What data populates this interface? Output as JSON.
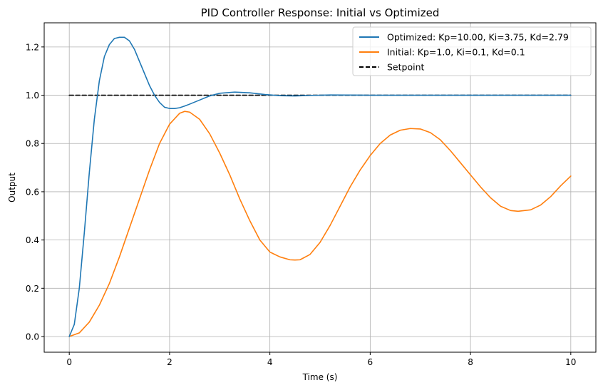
{
  "chart_data": {
    "type": "line",
    "title": "PID Controller Response: Initial vs Optimized",
    "xlabel": "Time (s)",
    "ylabel": "Output",
    "xlim": [
      -0.5,
      10.5
    ],
    "ylim": [
      -0.065,
      1.3
    ],
    "xticks": [
      0,
      2,
      4,
      6,
      8,
      10
    ],
    "xtick_labels": [
      "0",
      "2",
      "4",
      "6",
      "8",
      "10"
    ],
    "yticks": [
      0.0,
      0.2,
      0.4,
      0.6,
      0.8,
      1.0,
      1.2
    ],
    "ytick_labels": [
      "0.0",
      "0.2",
      "0.4",
      "0.6",
      "0.8",
      "1.0",
      "1.2"
    ],
    "grid": true,
    "legend_position": "top-right",
    "series": [
      {
        "name": "Optimized: Kp=10.00, Ki=3.75, Kd=2.79",
        "color": "#1f77b4",
        "dash": "solid",
        "x": [
          0,
          0.1,
          0.2,
          0.3,
          0.4,
          0.5,
          0.6,
          0.7,
          0.8,
          0.9,
          1.0,
          1.1,
          1.2,
          1.3,
          1.4,
          1.5,
          1.6,
          1.7,
          1.8,
          1.9,
          2.0,
          2.1,
          2.2,
          2.3,
          2.4,
          2.6,
          2.8,
          3.0,
          3.3,
          3.6,
          3.9,
          4.2,
          4.5,
          4.8,
          5.2,
          6,
          7,
          8,
          9,
          10
        ],
        "y": [
          0,
          0.05,
          0.2,
          0.43,
          0.68,
          0.9,
          1.06,
          1.16,
          1.21,
          1.235,
          1.24,
          1.24,
          1.225,
          1.19,
          1.14,
          1.09,
          1.04,
          1.0,
          0.97,
          0.95,
          0.945,
          0.945,
          0.948,
          0.955,
          0.963,
          0.98,
          0.997,
          1.008,
          1.013,
          1.01,
          1.003,
          0.998,
          0.997,
          0.999,
          1.001,
          1.0,
          1.0,
          1.0,
          1.0,
          1.0
        ]
      },
      {
        "name": "Initial: Kp=1.0, Ki=0.1, Kd=0.1",
        "color": "#ff7f0e",
        "dash": "solid",
        "x": [
          0,
          0.2,
          0.4,
          0.6,
          0.8,
          1.0,
          1.2,
          1.4,
          1.6,
          1.8,
          2.0,
          2.2,
          2.3,
          2.4,
          2.6,
          2.8,
          3.0,
          3.2,
          3.4,
          3.6,
          3.8,
          4.0,
          4.2,
          4.4,
          4.5,
          4.6,
          4.8,
          5.0,
          5.2,
          5.4,
          5.6,
          5.8,
          6.0,
          6.2,
          6.4,
          6.6,
          6.8,
          7.0,
          7.2,
          7.4,
          7.6,
          7.8,
          8.0,
          8.2,
          8.4,
          8.6,
          8.8,
          8.95,
          9.2,
          9.4,
          9.6,
          9.8,
          10.0
        ],
        "y": [
          0,
          0.015,
          0.06,
          0.13,
          0.22,
          0.33,
          0.45,
          0.57,
          0.69,
          0.8,
          0.88,
          0.925,
          0.933,
          0.93,
          0.9,
          0.84,
          0.76,
          0.67,
          0.57,
          0.48,
          0.4,
          0.35,
          0.33,
          0.318,
          0.317,
          0.318,
          0.34,
          0.39,
          0.46,
          0.54,
          0.62,
          0.69,
          0.75,
          0.8,
          0.835,
          0.855,
          0.862,
          0.86,
          0.845,
          0.815,
          0.77,
          0.72,
          0.67,
          0.62,
          0.575,
          0.54,
          0.522,
          0.519,
          0.525,
          0.545,
          0.58,
          0.625,
          0.665
        ]
      },
      {
        "name": "Setpoint",
        "color": "#000000",
        "dash": "dashed",
        "x": [
          0,
          10
        ],
        "y": [
          1.0,
          1.0
        ]
      }
    ]
  }
}
